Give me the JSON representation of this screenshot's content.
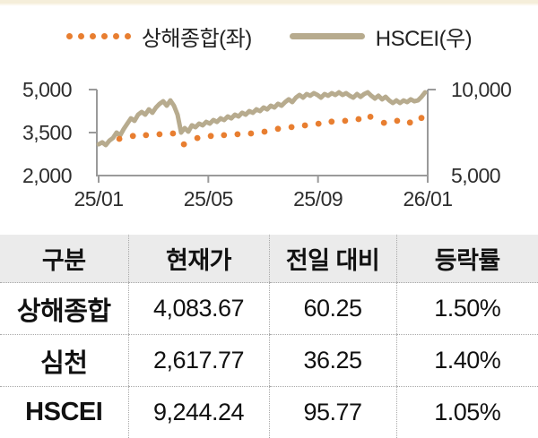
{
  "page": {
    "background_color": "#ffffff",
    "top_strip_color": "#f5eeda"
  },
  "chart_data": {
    "type": "line",
    "title": "",
    "x_tick_labels": [
      "25/01",
      "25/05",
      "25/09",
      "26/01"
    ],
    "left_axis": {
      "tick_labels": [
        "5,000",
        "3,500",
        "2,000"
      ],
      "range": [
        2000,
        5000
      ]
    },
    "right_axis": {
      "tick_labels": [
        "10,000",
        "5,000"
      ],
      "range": [
        5000,
        10000
      ]
    },
    "axis_color": "#9a9a9a",
    "grid": false,
    "legend_position": "top",
    "legend": [
      {
        "label": "상해종합(좌)",
        "marker": "dotted",
        "color": "#e87e30"
      },
      {
        "label": "HSCEI(우)",
        "marker": "line",
        "color": "#b7ab8e"
      }
    ],
    "series": [
      {
        "name": "상해종합(좌)",
        "axis": "left",
        "style": "dotted",
        "color": "#e87e30",
        "x": [
          0.063,
          0.104,
          0.144,
          0.185,
          0.226,
          0.259,
          0.3,
          0.341,
          0.381,
          0.422,
          0.463,
          0.504,
          0.545,
          0.586,
          0.627,
          0.668,
          0.708,
          0.749,
          0.79,
          0.826,
          0.867,
          0.907,
          0.946,
          0.981
        ],
        "values": [
          3280,
          3380,
          3410,
          3440,
          3470,
          3090,
          3310,
          3380,
          3410,
          3440,
          3470,
          3530,
          3630,
          3690,
          3750,
          3810,
          3880,
          3910,
          3970,
          4050,
          3840,
          3910,
          3850,
          4010
        ]
      },
      {
        "name": "HSCEI(우)",
        "axis": "right",
        "style": "solid",
        "color": "#b7ab8e",
        "x_range": [
          0,
          0.992
        ],
        "values": [
          6820,
          6930,
          6770,
          7030,
          7190,
          7500,
          7340,
          7710,
          8020,
          8330,
          8180,
          8540,
          8700,
          8540,
          8850,
          8650,
          8960,
          9170,
          9320,
          9060,
          9370,
          9060,
          8540,
          7500,
          7760,
          7550,
          7920,
          7810,
          8020,
          7920,
          8120,
          8020,
          8230,
          8120,
          8330,
          8230,
          8440,
          8330,
          8540,
          8440,
          8650,
          8540,
          8750,
          8650,
          8850,
          8750,
          8960,
          8850,
          9060,
          8960,
          9170,
          9060,
          9270,
          9430,
          9270,
          9530,
          9690,
          9530,
          9740,
          9640,
          9790,
          9690,
          9530,
          9740,
          9640,
          9790,
          9690,
          9840,
          9690,
          9790,
          9640,
          9530,
          9740,
          9580,
          9740,
          9840,
          9640,
          9480,
          9640,
          9430,
          9580,
          9370,
          9220,
          9370,
          9220,
          9370,
          9270,
          9430,
          9320,
          9370,
          9580,
          9840
        ]
      }
    ]
  },
  "table": {
    "columns": [
      "구분",
      "현재가",
      "전일 대비",
      "등락률"
    ],
    "rows": [
      {
        "name": "상해종합",
        "price": "4,083.67",
        "change": "60.25",
        "pct": "1.50%"
      },
      {
        "name": "심천",
        "price": "2,617.77",
        "change": "36.25",
        "pct": "1.40%"
      },
      {
        "name": "HSCEI",
        "price": "9,244.24",
        "change": "95.77",
        "pct": "1.05%"
      }
    ]
  }
}
